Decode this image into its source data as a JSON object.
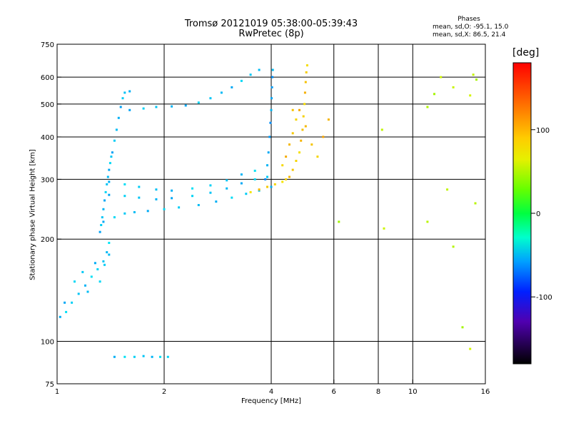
{
  "header": {
    "title_line1": "Tromsø 20121019 05:38:00-05:39:43",
    "title_line2": "RwPretec (8p)"
  },
  "stats": {
    "title": "Phases",
    "o_line": "mean, sd,O: -95.1, 15.0",
    "x_line": "mean, sd,X:  86.5, 21.4"
  },
  "colorbar": {
    "title": "[deg]",
    "range": [
      -180,
      180
    ],
    "ticks": [
      {
        "value": 100,
        "label": "100"
      },
      {
        "value": 0,
        "label": "0"
      },
      {
        "value": -100,
        "label": "-100"
      }
    ]
  },
  "chart_data": {
    "type": "scatter",
    "title": "Tromsø 20121019 05:38:00-05:39:43",
    "subtitle": "RwPretec (8p)",
    "xlabel": "Frequency [MHz]",
    "ylabel": "Stationary phase Virtual Height [km]",
    "xscale": "log",
    "yscale": "log",
    "xlim": [
      1,
      16
    ],
    "ylim": [
      75,
      750
    ],
    "grid": true,
    "x_ticks": [
      1,
      2,
      4,
      6,
      8,
      10,
      16
    ],
    "x_tick_labels": [
      "1",
      "2",
      "4",
      "6",
      "8",
      "10",
      "16"
    ],
    "x_gridlines": [
      2,
      4,
      6,
      8,
      10
    ],
    "y_ticks": [
      75,
      100,
      200,
      300,
      400,
      500,
      600,
      750
    ],
    "y_tick_labels": [
      "75",
      "100",
      "200",
      "300",
      "400",
      "500",
      "600",
      "750"
    ],
    "y_gridlines": [
      100,
      200,
      300,
      400,
      500,
      600
    ],
    "color_by": "phase [deg]",
    "traces": [
      {
        "kind": "o-low-trace",
        "phase": -105,
        "points": [
          [
            1.02,
            118
          ],
          [
            1.06,
            122
          ],
          [
            1.1,
            130
          ],
          [
            1.15,
            138
          ],
          [
            1.2,
            146
          ],
          [
            1.25,
            155
          ],
          [
            1.3,
            163
          ],
          [
            1.35,
            172
          ],
          [
            1.38,
            183
          ],
          [
            1.4,
            195
          ]
        ]
      },
      {
        "kind": "o-low-scatter",
        "phase": -108,
        "points": [
          [
            1.05,
            130
          ],
          [
            1.12,
            150
          ],
          [
            1.18,
            160
          ],
          [
            1.22,
            140
          ],
          [
            1.28,
            170
          ],
          [
            1.32,
            150
          ],
          [
            1.36,
            168
          ],
          [
            1.4,
            180
          ]
        ]
      },
      {
        "kind": "o-vertical-band",
        "phase": -110,
        "points": [
          [
            1.32,
            210
          ],
          [
            1.33,
            220
          ],
          [
            1.34,
            232
          ],
          [
            1.35,
            245
          ],
          [
            1.36,
            260
          ],
          [
            1.37,
            275
          ],
          [
            1.38,
            290
          ],
          [
            1.39,
            305
          ],
          [
            1.4,
            320
          ],
          [
            1.41,
            335
          ],
          [
            1.42,
            350
          ]
        ]
      },
      {
        "kind": "o-turn-up",
        "phase": -112,
        "points": [
          [
            1.43,
            360
          ],
          [
            1.45,
            390
          ],
          [
            1.47,
            420
          ],
          [
            1.49,
            455
          ],
          [
            1.51,
            490
          ],
          [
            1.53,
            520
          ],
          [
            1.55,
            540
          ],
          [
            1.6,
            545
          ]
        ]
      },
      {
        "kind": "o-bottom-trace",
        "phase": -108,
        "points": [
          [
            1.35,
            225
          ],
          [
            1.45,
            232
          ],
          [
            1.55,
            238
          ],
          [
            1.65,
            240
          ],
          [
            1.8,
            242
          ],
          [
            2.0,
            245
          ],
          [
            2.2,
            248
          ],
          [
            2.5,
            252
          ],
          [
            2.8,
            258
          ],
          [
            3.1,
            265
          ],
          [
            3.4,
            272
          ],
          [
            3.7,
            278
          ],
          [
            4.0,
            285
          ]
        ]
      },
      {
        "kind": "o-band-upper",
        "phase": -110,
        "points": [
          [
            1.4,
            270
          ],
          [
            1.55,
            268
          ],
          [
            1.7,
            265
          ],
          [
            1.9,
            262
          ],
          [
            2.1,
            264
          ],
          [
            2.4,
            268
          ],
          [
            2.7,
            274
          ],
          [
            3.0,
            282
          ],
          [
            3.3,
            292
          ],
          [
            3.6,
            300
          ],
          [
            3.9,
            305
          ]
        ]
      },
      {
        "kind": "o-band-mid",
        "phase": -106,
        "points": [
          [
            1.4,
            295
          ],
          [
            1.55,
            290
          ],
          [
            1.7,
            285
          ],
          [
            1.9,
            280
          ],
          [
            2.1,
            278
          ],
          [
            2.4,
            282
          ],
          [
            2.7,
            288
          ],
          [
            3.0,
            298
          ],
          [
            3.3,
            310
          ],
          [
            3.6,
            318
          ]
        ]
      },
      {
        "kind": "o-cusp-rise",
        "phase": -120,
        "points": [
          [
            3.85,
            300
          ],
          [
            3.9,
            330
          ],
          [
            3.93,
            360
          ],
          [
            3.96,
            400
          ],
          [
            3.98,
            440
          ],
          [
            4.0,
            480
          ],
          [
            4.01,
            520
          ],
          [
            4.02,
            560
          ],
          [
            4.03,
            600
          ],
          [
            4.04,
            630
          ]
        ]
      },
      {
        "kind": "o-upper-branch",
        "phase": -110,
        "points": [
          [
            1.6,
            480
          ],
          [
            1.75,
            485
          ],
          [
            1.9,
            490
          ],
          [
            2.1,
            492
          ],
          [
            2.3,
            495
          ],
          [
            2.5,
            505
          ],
          [
            2.7,
            520
          ],
          [
            2.9,
            540
          ],
          [
            3.1,
            560
          ],
          [
            3.3,
            585
          ],
          [
            3.5,
            610
          ],
          [
            3.7,
            630
          ]
        ]
      },
      {
        "kind": "o-spread-75km",
        "phase": -105,
        "points": [
          [
            1.45,
            90
          ],
          [
            1.55,
            90
          ],
          [
            1.65,
            90
          ],
          [
            1.75,
            90.5
          ],
          [
            1.85,
            90
          ],
          [
            1.95,
            90
          ],
          [
            2.05,
            90
          ]
        ]
      },
      {
        "kind": "x-trace",
        "phase": 95,
        "points": [
          [
            3.5,
            275
          ],
          [
            3.7,
            280
          ],
          [
            3.9,
            285
          ],
          [
            4.1,
            290
          ],
          [
            4.3,
            295
          ],
          [
            4.5,
            305
          ],
          [
            4.6,
            320
          ],
          [
            4.7,
            340
          ],
          [
            4.8,
            360
          ],
          [
            4.85,
            390
          ],
          [
            4.9,
            420
          ],
          [
            4.93,
            460
          ],
          [
            4.96,
            500
          ],
          [
            4.98,
            540
          ],
          [
            5.0,
            580
          ],
          [
            5.02,
            620
          ],
          [
            5.05,
            650
          ]
        ]
      },
      {
        "kind": "x-cloud",
        "phase": 100,
        "points": [
          [
            4.3,
            330
          ],
          [
            4.4,
            350
          ],
          [
            4.5,
            380
          ],
          [
            4.6,
            410
          ],
          [
            4.7,
            450
          ],
          [
            4.8,
            480
          ],
          [
            5.0,
            430
          ],
          [
            5.2,
            380
          ],
          [
            5.4,
            350
          ],
          [
            5.6,
            400
          ],
          [
            5.8,
            450
          ],
          [
            4.6,
            480
          ],
          [
            4.4,
            300
          ]
        ]
      },
      {
        "kind": "scattered",
        "phase": 60,
        "points": [
          [
            6.2,
            225
          ],
          [
            8.3,
            215
          ],
          [
            8.2,
            420
          ],
          [
            11.0,
            490
          ],
          [
            11.5,
            535
          ],
          [
            12.0,
            600
          ],
          [
            12.5,
            280
          ],
          [
            13.0,
            190
          ],
          [
            13.8,
            110
          ],
          [
            14.5,
            95
          ],
          [
            14.8,
            610
          ],
          [
            15.0,
            255
          ],
          [
            15.1,
            590
          ],
          [
            14.5,
            530
          ],
          [
            13.0,
            560
          ],
          [
            11.0,
            225
          ]
        ]
      }
    ]
  }
}
